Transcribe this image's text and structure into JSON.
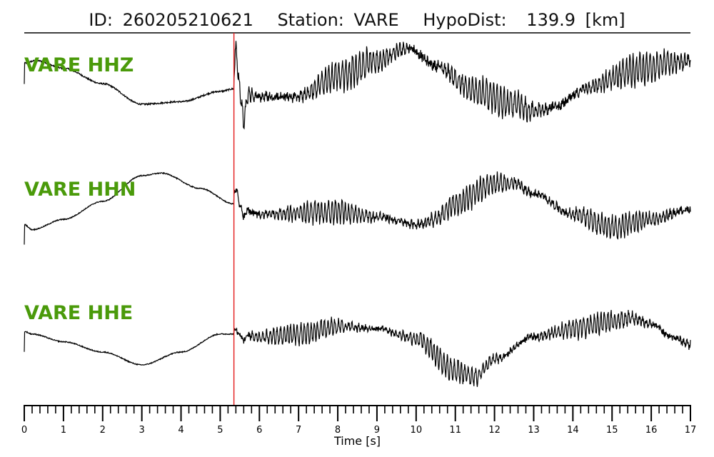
{
  "header": {
    "id_label": "ID:",
    "id_value": "260205210621",
    "station_label": "Station:",
    "station_value": "VARE",
    "hypodist_label": "HypoDist:",
    "hypodist_value": "139.9",
    "hypodist_unit": "[km]"
  },
  "colors": {
    "trace": "#000000",
    "label": "#4a9a0a",
    "pick_line": "#e31a1c",
    "axis": "#000000"
  },
  "chart_data": {
    "type": "line",
    "xlabel": "Time [s]",
    "xlim": [
      0,
      17
    ],
    "x_major_ticks": [
      0,
      1,
      2,
      3,
      4,
      5,
      6,
      7,
      8,
      9,
      10,
      11,
      12,
      13,
      14,
      15,
      16,
      17
    ],
    "x_minor_step": 0.2,
    "pick_time": 5.35,
    "grid": false,
    "series": [
      {
        "name": "VARE HHZ",
        "low_freq": [
          [
            0,
            0.55
          ],
          [
            0.3,
            0.6
          ],
          [
            1,
            0.45
          ],
          [
            2,
            0.15
          ],
          [
            3,
            -0.25
          ],
          [
            4,
            -0.2
          ],
          [
            5,
            0.0
          ],
          [
            5.35,
            0.05
          ],
          [
            6,
            -0.1
          ],
          [
            7,
            -0.1
          ],
          [
            8,
            0.3
          ],
          [
            9,
            0.6
          ],
          [
            9.8,
            0.85
          ],
          [
            10.5,
            0.5
          ],
          [
            11.5,
            0.0
          ],
          [
            12.5,
            -0.25
          ],
          [
            13,
            -0.4
          ],
          [
            13.5,
            -0.3
          ],
          [
            14.5,
            0.1
          ],
          [
            15.5,
            0.4
          ],
          [
            16.5,
            0.55
          ],
          [
            17,
            0.6
          ]
        ],
        "pre_noise": 0.03,
        "post_amp": 0.28,
        "spike": [
          [
            5.4,
            0.7
          ],
          [
            5.6,
            -0.6
          ]
        ]
      },
      {
        "name": "VARE HHN",
        "low_freq": [
          [
            0,
            -0.2
          ],
          [
            0.2,
            -0.3
          ],
          [
            1,
            -0.1
          ],
          [
            2,
            0.25
          ],
          [
            3,
            0.75
          ],
          [
            3.5,
            0.8
          ],
          [
            4.5,
            0.5
          ],
          [
            5.35,
            0.2
          ],
          [
            6,
            0.0
          ],
          [
            8,
            0.05
          ],
          [
            9,
            -0.05
          ],
          [
            10,
            -0.2
          ],
          [
            10.5,
            -0.1
          ],
          [
            11,
            0.2
          ],
          [
            12,
            0.6
          ],
          [
            12.5,
            0.6
          ],
          [
            13,
            0.4
          ],
          [
            14,
            0.0
          ],
          [
            15,
            -0.25
          ],
          [
            16,
            -0.1
          ],
          [
            17,
            0.1
          ]
        ],
        "pre_noise": 0.02,
        "post_amp": 0.22,
        "spike": [
          [
            5.4,
            0.3
          ],
          [
            5.6,
            -0.2
          ]
        ]
      },
      {
        "name": "VARE HHE",
        "low_freq": [
          [
            0,
            0.15
          ],
          [
            0.2,
            0.1
          ],
          [
            1,
            -0.05
          ],
          [
            2,
            -0.25
          ],
          [
            3,
            -0.5
          ],
          [
            4,
            -0.25
          ],
          [
            5,
            0.1
          ],
          [
            5.35,
            0.1
          ],
          [
            6,
            0.05
          ],
          [
            7,
            0.1
          ],
          [
            8,
            0.25
          ],
          [
            9,
            0.2
          ],
          [
            10,
            0.0
          ],
          [
            11,
            -0.6
          ],
          [
            11.5,
            -0.75
          ],
          [
            12,
            -0.4
          ],
          [
            13,
            0.05
          ],
          [
            14,
            0.2
          ],
          [
            15,
            0.35
          ],
          [
            15.5,
            0.4
          ],
          [
            16,
            0.3
          ],
          [
            16.5,
            0.05
          ],
          [
            17,
            -0.1
          ]
        ],
        "pre_noise": 0.02,
        "post_amp": 0.2,
        "spike": [
          [
            5.4,
            0.1
          ],
          [
            5.6,
            -0.1
          ]
        ]
      }
    ]
  }
}
